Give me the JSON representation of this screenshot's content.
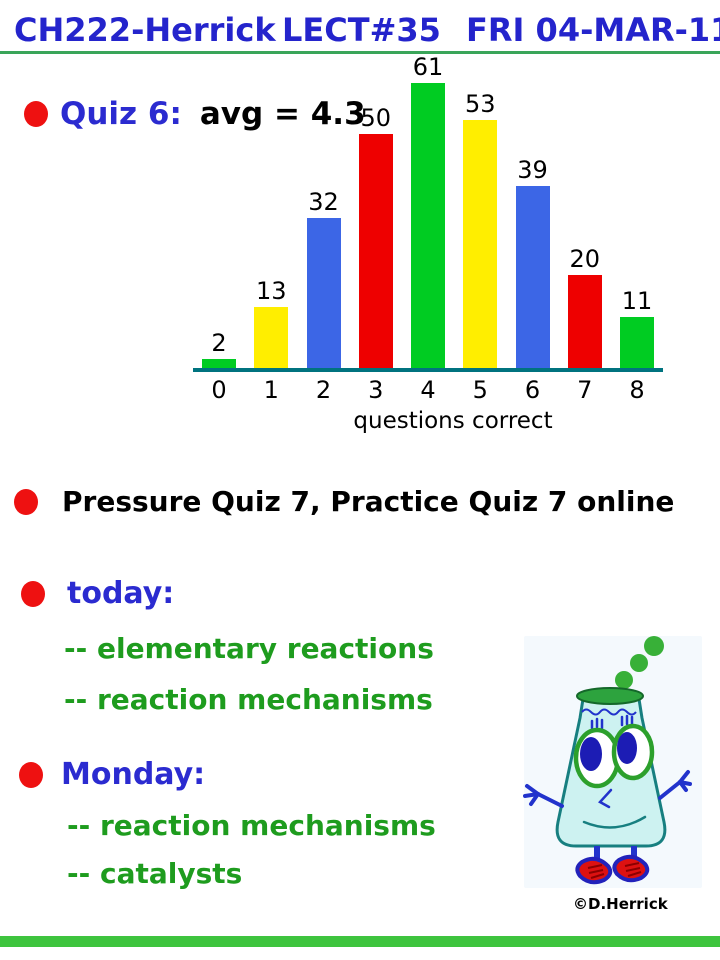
{
  "header": {
    "course": "CH222-Herrick",
    "lecture": "LECT#35",
    "date": "FRI 04-MAR-11"
  },
  "quiz": {
    "label": "Quiz 6:",
    "avg": "avg = 4.3"
  },
  "chart_data": {
    "type": "bar",
    "categories": [
      "0",
      "1",
      "2",
      "3",
      "4",
      "5",
      "6",
      "7",
      "8"
    ],
    "values": [
      2,
      13,
      32,
      50,
      61,
      53,
      39,
      20,
      11
    ],
    "bar_colors": [
      "#00cc22",
      "#ffee00",
      "#3c66e6",
      "#ee0000",
      "#00cc22",
      "#ffee00",
      "#3c66e6",
      "#ee0000",
      "#00cc22"
    ],
    "xlabel": "questions correct",
    "ylim": [
      0,
      61
    ],
    "grid": false,
    "legend": false,
    "axis_color": "#00737f",
    "value_labels_shown": true
  },
  "bullets": {
    "pressure": "Pressure Quiz 7, Practice Quiz 7 online",
    "today_label": "today:",
    "today_items": [
      "-- elementary reactions",
      "-- reaction mechanisms"
    ],
    "monday_label": "Monday:",
    "monday_items": [
      "-- reaction mechanisms",
      "-- catalysts"
    ]
  },
  "credit": "©D.Herrick",
  "colors": {
    "header_blue": "#2424cc",
    "text_blue": "#2b2bd0",
    "text_green": "#1e9c1e",
    "bullet_red": "#ee1111",
    "header_rule_green": "#3aa559",
    "footer_bar_green": "#3ec43e",
    "axis_teal": "#00737f"
  }
}
